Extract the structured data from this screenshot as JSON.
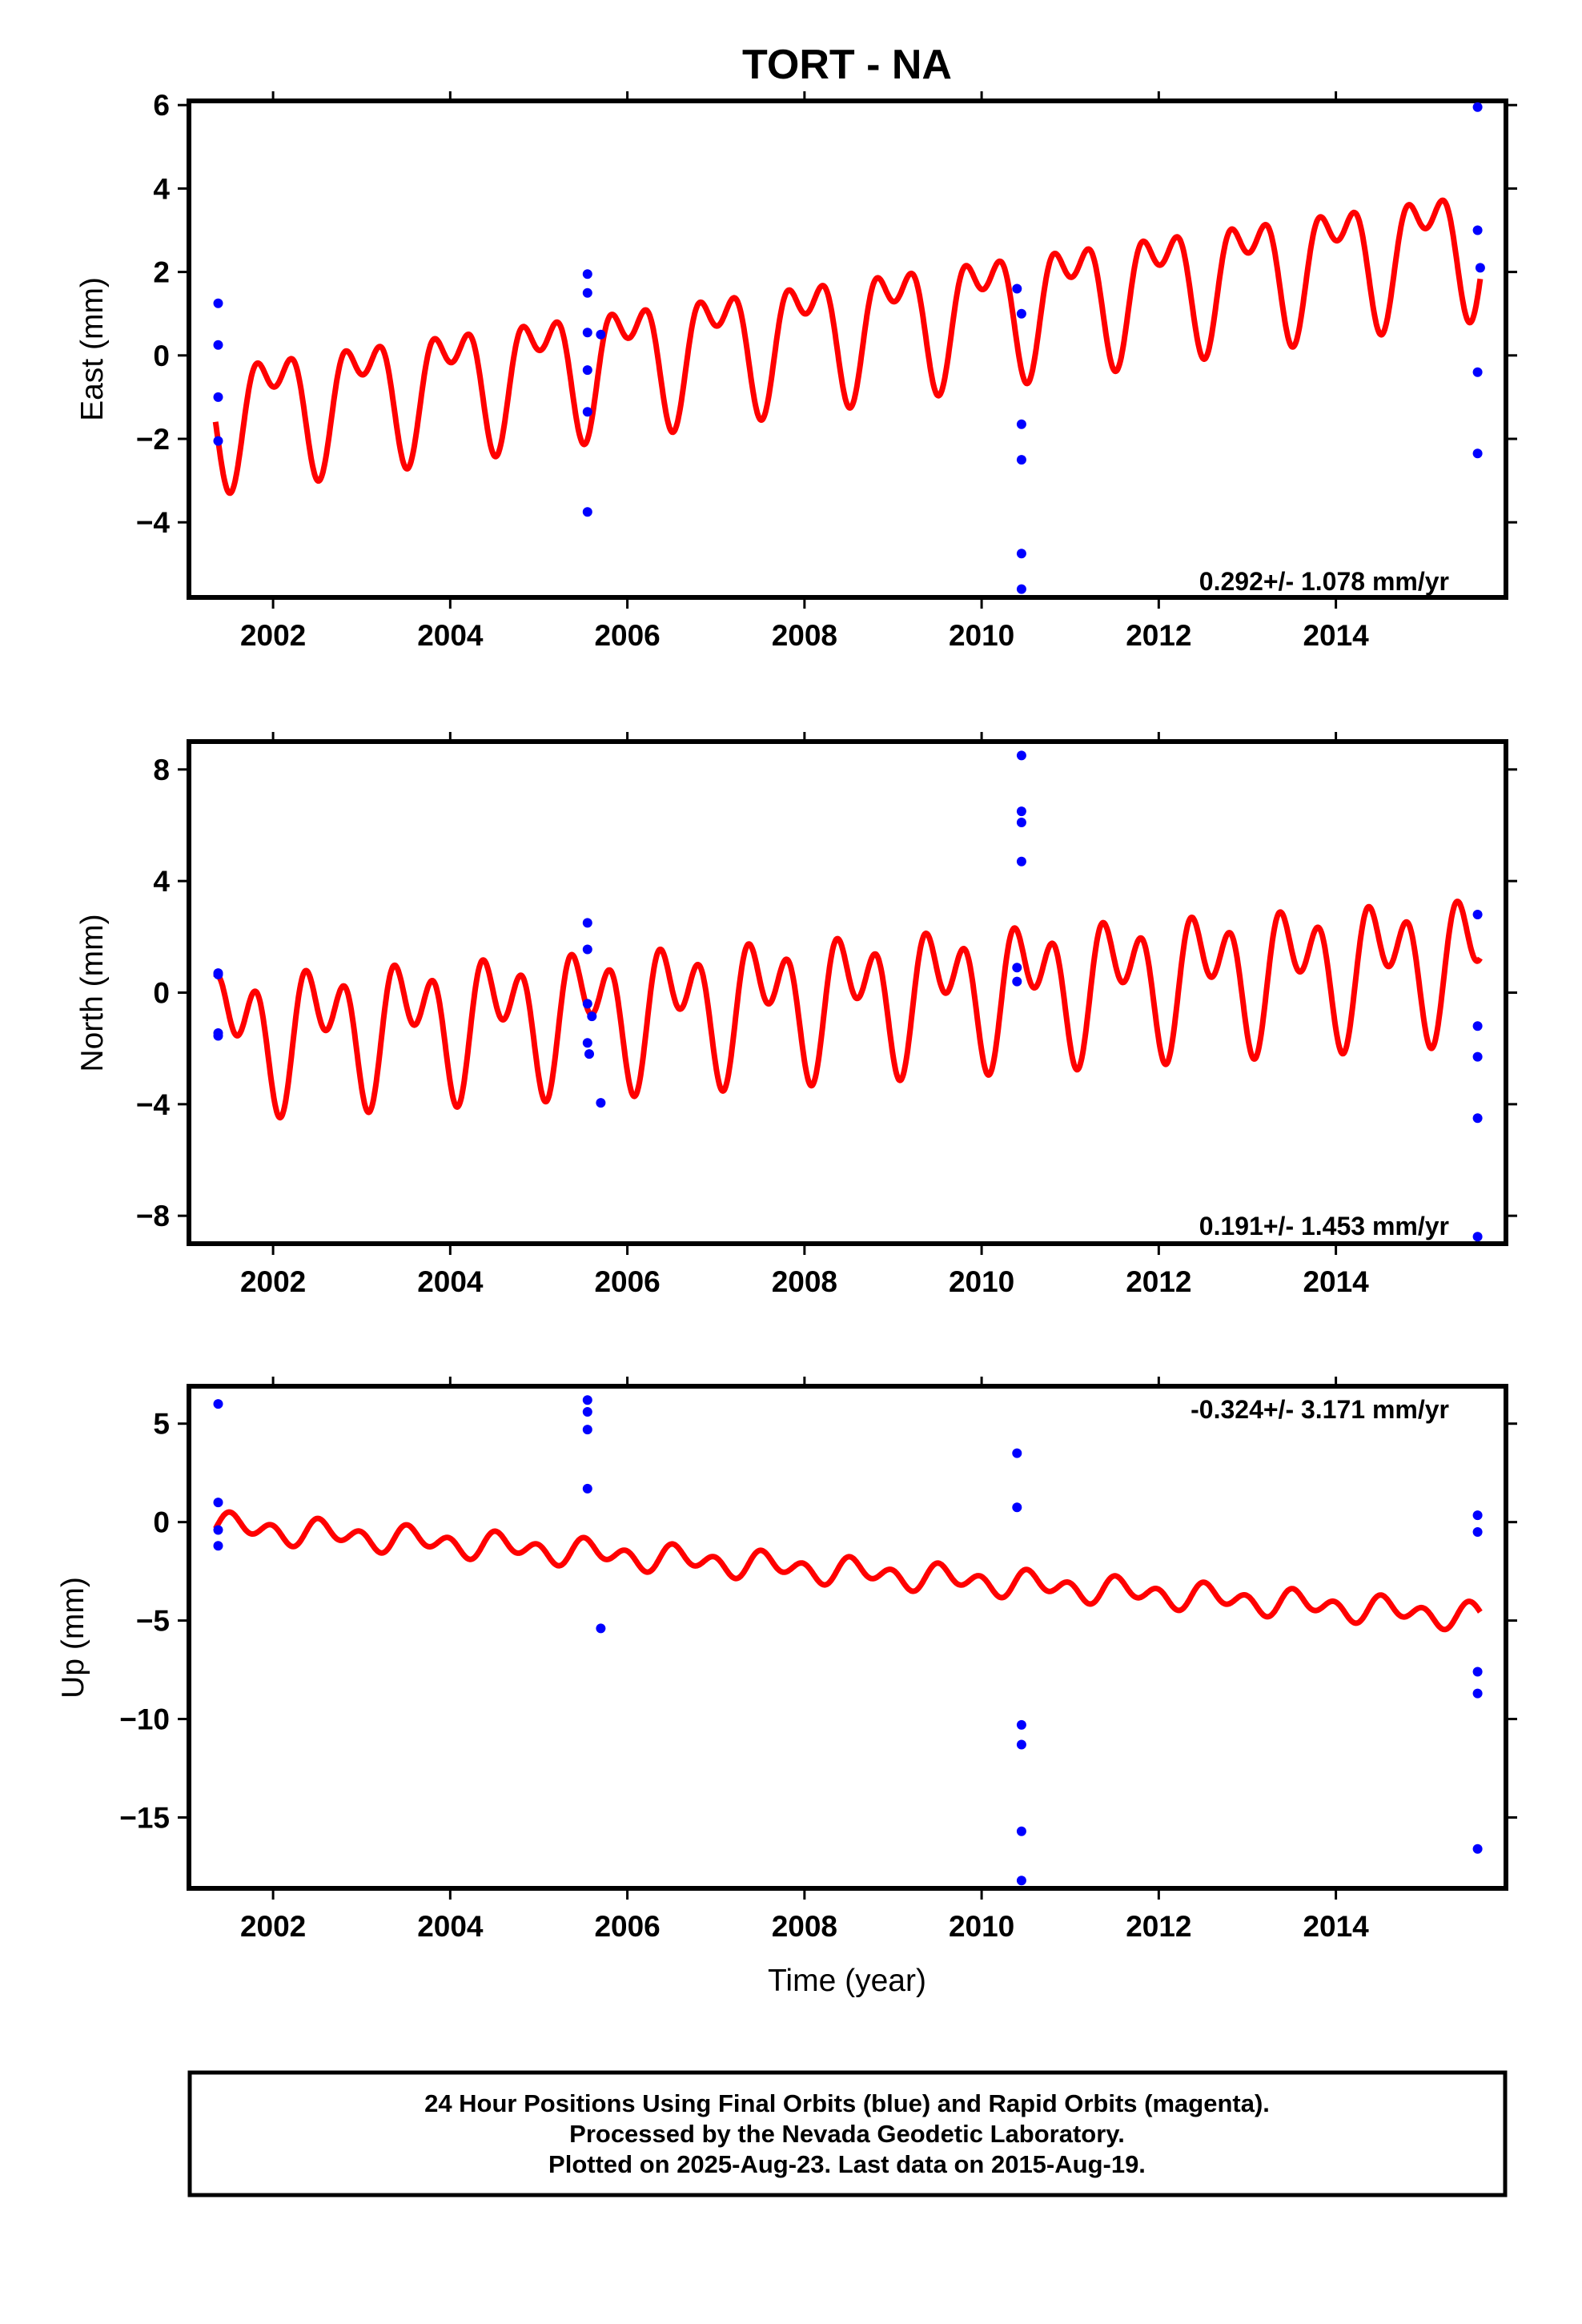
{
  "title": "TORT - NA",
  "footer": {
    "line1": "24 Hour Positions Using Final Orbits (blue) and Rapid Orbits (magenta).",
    "line2": "Processed by the Nevada Geodetic Laboratory.",
    "line3": "Plotted on 2025-Aug-23. Last data on 2015-Aug-19."
  },
  "colors": {
    "observations": "#0000ff",
    "model": "#ff0000",
    "frame": "#000000"
  },
  "chart_data": [
    {
      "type": "scatter",
      "title": "TORT - NA",
      "xlabel": "",
      "ylabel": "East (mm)",
      "xlim": [
        2001.05,
        2015.92
      ],
      "ylim": [
        -5.8,
        6.1
      ],
      "xticks": [
        2002,
        2004,
        2006,
        2008,
        2010,
        2012,
        2014
      ],
      "xtick_labels": [
        "2002",
        "2004",
        "2006",
        "2008",
        "2010",
        "2012",
        "2014"
      ],
      "yticks": [
        -4,
        -2,
        0,
        2,
        4,
        6
      ],
      "ytick_labels": [
        "−4",
        "−2",
        "0",
        "2",
        "4",
        "6"
      ],
      "annotation": "0.292+/- 1.078 mm/yr",
      "annotation_position": "bottom-right",
      "grid": false,
      "series": [
        {
          "style": "points",
          "color": "#0000ff",
          "points": [
            [
              2001.38,
              1.25
            ],
            [
              2001.38,
              0.25
            ],
            [
              2001.38,
              -1.0
            ],
            [
              2001.38,
              -2.05
            ],
            [
              2005.55,
              1.95
            ],
            [
              2005.55,
              1.5
            ],
            [
              2005.55,
              0.55
            ],
            [
              2005.55,
              -0.35
            ],
            [
              2005.55,
              -1.35
            ],
            [
              2005.55,
              -3.75
            ],
            [
              2005.7,
              0.5
            ],
            [
              2010.4,
              1.6
            ],
            [
              2010.45,
              1.0
            ],
            [
              2010.45,
              -1.65
            ],
            [
              2010.45,
              -2.5
            ],
            [
              2010.45,
              -4.75
            ],
            [
              2010.45,
              -5.6
            ],
            [
              2015.6,
              5.95
            ],
            [
              2015.6,
              3.0
            ],
            [
              2015.63,
              2.1
            ],
            [
              2015.6,
              -0.4
            ],
            [
              2015.6,
              -2.35
            ]
          ]
        },
        {
          "style": "line",
          "color": "#ff0000",
          "model": {
            "start": 2001.35,
            "end": 2015.63,
            "t0": 2001.35,
            "offset": -1.35,
            "rate": 0.292,
            "annual_amp": 1.2,
            "annual_phase": -2.6,
            "semiannual_amp": 0.8,
            "semiannual_phase": 2.65
          }
        }
      ]
    },
    {
      "type": "scatter",
      "xlabel": "",
      "ylabel": "North (mm)",
      "xlim": [
        2001.05,
        2015.92
      ],
      "ylim": [
        -9.0,
        9.0
      ],
      "xticks": [
        2002,
        2004,
        2006,
        2008,
        2010,
        2012,
        2014
      ],
      "xtick_labels": [
        "2002",
        "2004",
        "2006",
        "2008",
        "2010",
        "2012",
        "2014"
      ],
      "yticks": [
        -8,
        -4,
        0,
        4,
        8
      ],
      "ytick_labels": [
        "−8",
        "−4",
        "0",
        "4",
        "8"
      ],
      "annotation": "0.191+/- 1.453 mm/yr",
      "annotation_position": "bottom-right",
      "grid": false,
      "series": [
        {
          "style": "points",
          "color": "#0000ff",
          "points": [
            [
              2001.38,
              0.7
            ],
            [
              2001.38,
              0.65
            ],
            [
              2001.38,
              -1.45
            ],
            [
              2001.38,
              -1.55
            ],
            [
              2005.55,
              2.5
            ],
            [
              2005.55,
              1.55
            ],
            [
              2005.55,
              -0.4
            ],
            [
              2005.6,
              -0.85
            ],
            [
              2005.55,
              -1.8
            ],
            [
              2005.57,
              -2.2
            ],
            [
              2005.7,
              -3.95
            ],
            [
              2010.45,
              8.5
            ],
            [
              2010.45,
              6.5
            ],
            [
              2010.45,
              6.1
            ],
            [
              2010.45,
              4.7
            ],
            [
              2010.4,
              0.9
            ],
            [
              2010.4,
              0.4
            ],
            [
              2015.6,
              2.8
            ],
            [
              2015.6,
              -1.2
            ],
            [
              2015.6,
              -2.3
            ],
            [
              2015.6,
              -4.5
            ],
            [
              2015.6,
              -8.75
            ]
          ]
        },
        {
          "style": "line",
          "color": "#ff0000",
          "model": {
            "start": 2001.35,
            "end": 2015.63,
            "t0": 2001.35,
            "offset": -1.5,
            "rate": 0.191,
            "annual_amp": 1.55,
            "annual_phase": 0.3,
            "semiannual_amp": 1.6,
            "semiannual_phase": 1.75
          }
        }
      ]
    },
    {
      "type": "scatter",
      "xlabel": "Time (year)",
      "ylabel": "Up (mm)",
      "xlim": [
        2001.05,
        2015.92
      ],
      "ylim": [
        -18.6,
        6.9
      ],
      "xticks": [
        2002,
        2004,
        2006,
        2008,
        2010,
        2012,
        2014
      ],
      "xtick_labels": [
        "2002",
        "2004",
        "2006",
        "2008",
        "2010",
        "2012",
        "2014"
      ],
      "yticks": [
        -15,
        -10,
        -5,
        0,
        5
      ],
      "ytick_labels": [
        "−15",
        "−10",
        "−5",
        "0",
        "5"
      ],
      "annotation": "-0.324+/- 3.171 mm/yr",
      "annotation_position": "top-right",
      "grid": false,
      "series": [
        {
          "style": "points",
          "color": "#0000ff",
          "points": [
            [
              2001.38,
              6.0
            ],
            [
              2001.38,
              1.0
            ],
            [
              2001.38,
              -0.4
            ],
            [
              2001.38,
              -1.2
            ],
            [
              2005.55,
              6.2
            ],
            [
              2005.55,
              5.6
            ],
            [
              2005.55,
              4.7
            ],
            [
              2005.55,
              1.7
            ],
            [
              2005.7,
              -5.4
            ],
            [
              2010.4,
              3.5
            ],
            [
              2010.4,
              0.75
            ],
            [
              2010.45,
              -10.3
            ],
            [
              2010.45,
              -11.3
            ],
            [
              2010.45,
              -15.7
            ],
            [
              2010.45,
              -18.2
            ],
            [
              2015.6,
              0.35
            ],
            [
              2015.6,
              -0.5
            ],
            [
              2015.6,
              -7.6
            ],
            [
              2015.6,
              -8.7
            ],
            [
              2015.6,
              -16.6
            ]
          ]
        },
        {
          "style": "line",
          "color": "#ff0000",
          "model": {
            "start": 2001.35,
            "end": 2015.63,
            "t0": 2001.35,
            "offset": -0.2,
            "rate": -0.324,
            "annual_amp": 0.35,
            "annual_phase": -0.1,
            "semiannual_amp": 0.5,
            "semiannual_phase": -0.2
          }
        }
      ]
    }
  ]
}
